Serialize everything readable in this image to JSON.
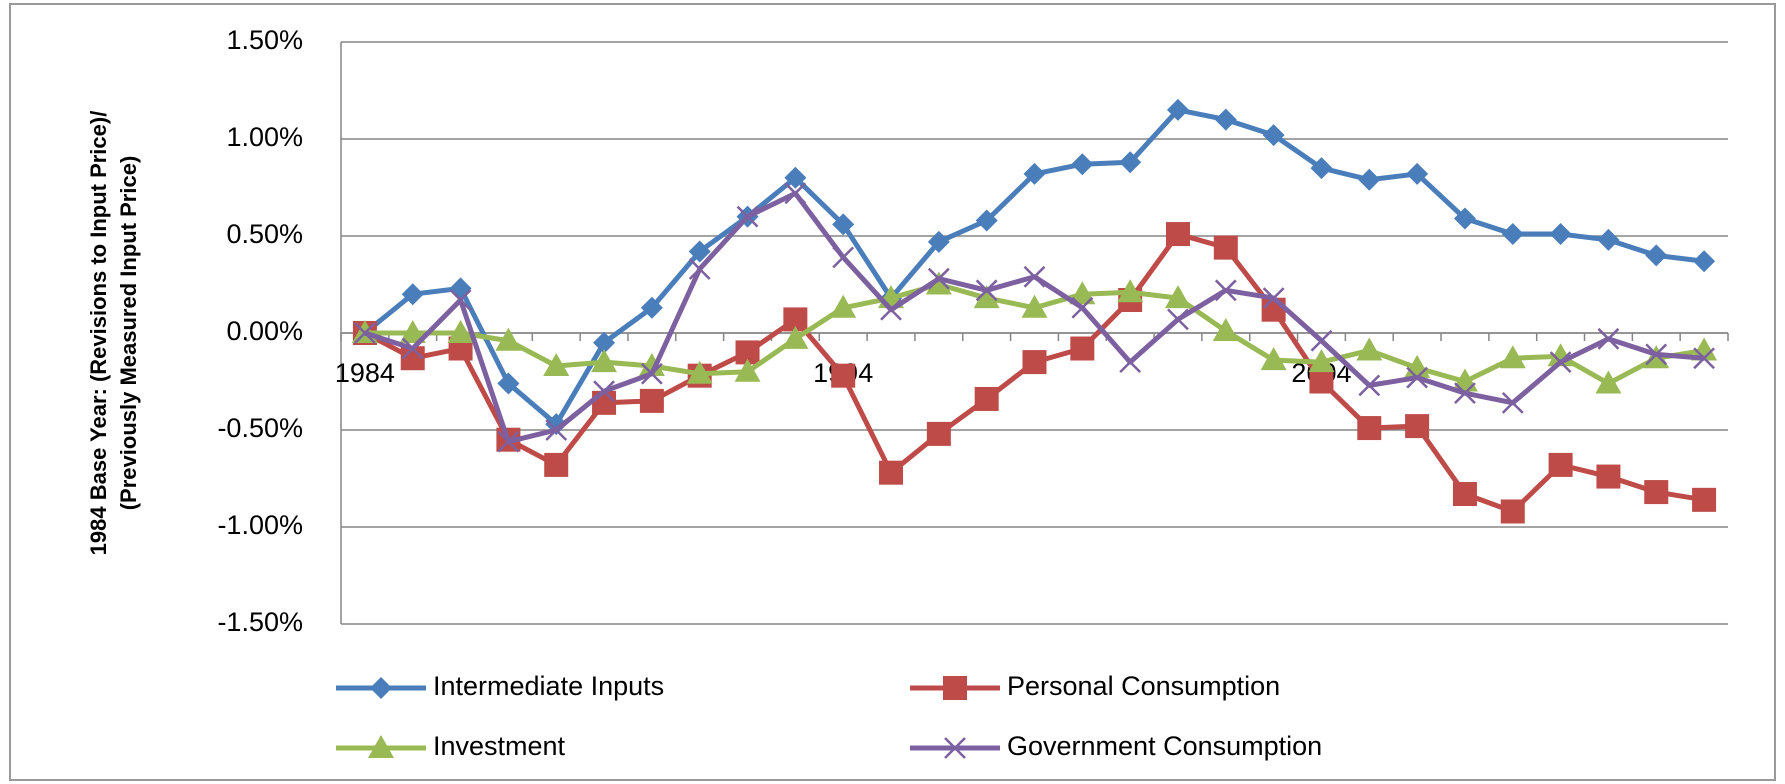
{
  "chart_data": {
    "type": "line",
    "y_label": [
      "1984 Base Year: (Revisions to Input Price)/",
      "(Previously Measured Input Price)"
    ],
    "categories": [
      "1984",
      null,
      null,
      null,
      null,
      null,
      null,
      null,
      null,
      null,
      "1994",
      null,
      null,
      null,
      null,
      null,
      null,
      null,
      null,
      null,
      "2004",
      null,
      null,
      null,
      null,
      null,
      null,
      null,
      null
    ],
    "series": [
      {
        "name": "Intermediate Inputs",
        "color": "#4a7ebb",
        "marker": "diamond",
        "values": [
          0.0,
          0.2,
          0.23,
          -0.26,
          -0.47,
          -0.05,
          0.13,
          0.42,
          0.6,
          0.8,
          0.56,
          0.18,
          0.47,
          0.58,
          0.82,
          0.87,
          0.88,
          1.15,
          1.1,
          1.02,
          0.85,
          0.79,
          0.82,
          0.59,
          0.51,
          0.51,
          0.48,
          0.4,
          0.37
        ]
      },
      {
        "name": "Personal Consumption",
        "color": "#be4b48",
        "marker": "square",
        "values": [
          0.0,
          -0.13,
          -0.08,
          -0.55,
          -0.68,
          -0.36,
          -0.35,
          -0.22,
          -0.1,
          0.07,
          -0.22,
          -0.72,
          -0.52,
          -0.34,
          -0.15,
          -0.08,
          0.17,
          0.51,
          0.44,
          0.12,
          -0.25,
          -0.49,
          -0.48,
          -0.83,
          -0.92,
          -0.68,
          -0.74,
          -0.82,
          -0.86
        ]
      },
      {
        "name": "Investment",
        "color": "#98b954",
        "marker": "triangle",
        "values": [
          0.0,
          0.0,
          0.0,
          -0.04,
          -0.17,
          -0.15,
          -0.17,
          -0.21,
          -0.2,
          -0.03,
          0.13,
          0.18,
          0.25,
          0.18,
          0.13,
          0.2,
          0.21,
          0.18,
          0.01,
          -0.14,
          -0.15,
          -0.09,
          -0.18,
          -0.25,
          -0.13,
          -0.12,
          -0.26,
          -0.13,
          -0.09
        ]
      },
      {
        "name": "Government Consumption",
        "color": "#7d60a0",
        "marker": "x",
        "values": [
          0.0,
          -0.08,
          0.17,
          -0.56,
          -0.5,
          -0.3,
          -0.21,
          0.33,
          0.6,
          0.72,
          0.39,
          0.12,
          0.28,
          0.22,
          0.29,
          0.13,
          -0.15,
          0.07,
          0.22,
          0.18,
          -0.04,
          -0.27,
          -0.23,
          -0.31,
          -0.36,
          -0.15,
          -0.03,
          -0.11,
          -0.13
        ]
      }
    ],
    "ylim": [
      -1.5,
      1.5
    ],
    "yticks": [
      {
        "value": -1.5,
        "label": "-1.50%"
      },
      {
        "value": -1.0,
        "label": "-1.00%"
      },
      {
        "value": -0.5,
        "label": "-0.50%"
      },
      {
        "value": 0,
        "label": "0.00%"
      },
      {
        "value": 0.5,
        "label": "0.50%"
      },
      {
        "value": 1.0,
        "label": "1.00%"
      },
      {
        "value": 1.5,
        "label": "1.50%"
      }
    ],
    "grid": true,
    "legend": "bottom"
  }
}
